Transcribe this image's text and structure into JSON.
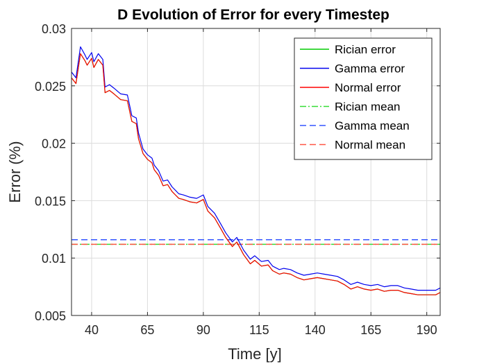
{
  "chart_data": {
    "type": "line",
    "title": "D Evolution of Error for every Timestep",
    "xlabel": "Time [y]",
    "ylabel": "Error (%)",
    "xlim": [
      31,
      196
    ],
    "ylim": [
      0.005,
      0.03
    ],
    "xticks": [
      40,
      65,
      90,
      115,
      140,
      165,
      190
    ],
    "yticks": [
      0.005,
      0.01,
      0.015,
      0.02,
      0.025,
      0.03
    ],
    "ytick_labels": [
      "0.005",
      "0.01",
      "0.015",
      "0.02",
      "0.025",
      "0.03"
    ],
    "grid": true,
    "legend_position": "top-right",
    "x": [
      31,
      33,
      35,
      37,
      38,
      40,
      41,
      43,
      45,
      46,
      48,
      50,
      53,
      56,
      58,
      60,
      61,
      63,
      65,
      67,
      68,
      70,
      72,
      74,
      76,
      79,
      81,
      84,
      87,
      90,
      92,
      95,
      98,
      100,
      103,
      105,
      108,
      111,
      113,
      116,
      119,
      121,
      124,
      126,
      129,
      132,
      135,
      138,
      141,
      144,
      147,
      150,
      153,
      156,
      159,
      162,
      165,
      168,
      171,
      174,
      177,
      180,
      183,
      186,
      189,
      192,
      194,
      196
    ],
    "series": [
      {
        "name": "Rician error",
        "color": "#00cc00",
        "style": "solid",
        "values": [
          0.0257,
          0.0252,
          0.0278,
          0.0272,
          0.0268,
          0.0274,
          0.0266,
          0.0273,
          0.0268,
          0.0244,
          0.0246,
          0.0243,
          0.0238,
          0.0237,
          0.0219,
          0.0217,
          0.0204,
          0.0191,
          0.0186,
          0.0183,
          0.0177,
          0.0172,
          0.0163,
          0.0164,
          0.0158,
          0.0152,
          0.0151,
          0.0149,
          0.0148,
          0.0151,
          0.0141,
          0.0135,
          0.0125,
          0.0118,
          0.011,
          0.0114,
          0.0103,
          0.0095,
          0.0098,
          0.0093,
          0.0094,
          0.0089,
          0.0086,
          0.0087,
          0.0086,
          0.0083,
          0.0081,
          0.0082,
          0.0083,
          0.0082,
          0.0081,
          0.008,
          0.0077,
          0.0073,
          0.0075,
          0.0073,
          0.0072,
          0.0073,
          0.0071,
          0.0072,
          0.0072,
          0.007,
          0.0069,
          0.0068,
          0.0068,
          0.0068,
          0.0068,
          0.007
        ]
      },
      {
        "name": "Gamma error",
        "color": "#0000ee",
        "style": "solid",
        "values": [
          0.0262,
          0.0257,
          0.0284,
          0.0277,
          0.0273,
          0.0279,
          0.0271,
          0.0278,
          0.0273,
          0.0249,
          0.0251,
          0.0248,
          0.0243,
          0.0242,
          0.0224,
          0.0222,
          0.0209,
          0.0195,
          0.019,
          0.0187,
          0.0181,
          0.0176,
          0.0167,
          0.0168,
          0.0162,
          0.0156,
          0.0155,
          0.0153,
          0.0152,
          0.0155,
          0.0145,
          0.0139,
          0.0129,
          0.0122,
          0.0114,
          0.0118,
          0.0107,
          0.0099,
          0.0102,
          0.0097,
          0.0098,
          0.0093,
          0.009,
          0.0091,
          0.009,
          0.0087,
          0.0085,
          0.0086,
          0.0087,
          0.0086,
          0.0085,
          0.0084,
          0.0081,
          0.0077,
          0.0079,
          0.0077,
          0.0076,
          0.0077,
          0.0075,
          0.0076,
          0.0076,
          0.0074,
          0.0073,
          0.0072,
          0.0072,
          0.0072,
          0.0072,
          0.0074
        ]
      },
      {
        "name": "Normal error",
        "color": "#ff0000",
        "style": "solid",
        "values": [
          0.0257,
          0.0252,
          0.0278,
          0.0272,
          0.0268,
          0.0274,
          0.0266,
          0.0273,
          0.0268,
          0.0244,
          0.0246,
          0.0243,
          0.0238,
          0.0237,
          0.0219,
          0.0217,
          0.0204,
          0.0191,
          0.0186,
          0.0183,
          0.0177,
          0.0172,
          0.0163,
          0.0164,
          0.0158,
          0.0152,
          0.0151,
          0.0149,
          0.0148,
          0.0151,
          0.0141,
          0.0135,
          0.0125,
          0.0118,
          0.011,
          0.0114,
          0.0103,
          0.0095,
          0.0098,
          0.0093,
          0.0094,
          0.0089,
          0.0086,
          0.0087,
          0.0086,
          0.0083,
          0.0081,
          0.0082,
          0.0083,
          0.0082,
          0.0081,
          0.008,
          0.0077,
          0.0073,
          0.0075,
          0.0073,
          0.0072,
          0.0073,
          0.0071,
          0.0072,
          0.0072,
          0.007,
          0.0069,
          0.0068,
          0.0068,
          0.0068,
          0.0068,
          0.007
        ]
      },
      {
        "name": "Rician mean",
        "color": "#33dd33",
        "style": "dashdot",
        "value": 0.0112
      },
      {
        "name": "Gamma mean",
        "color": "#3355ff",
        "style": "dashed",
        "value": 0.0116
      },
      {
        "name": "Normal mean",
        "color": "#ff5544",
        "style": "dashed",
        "value": 0.0112
      }
    ]
  }
}
